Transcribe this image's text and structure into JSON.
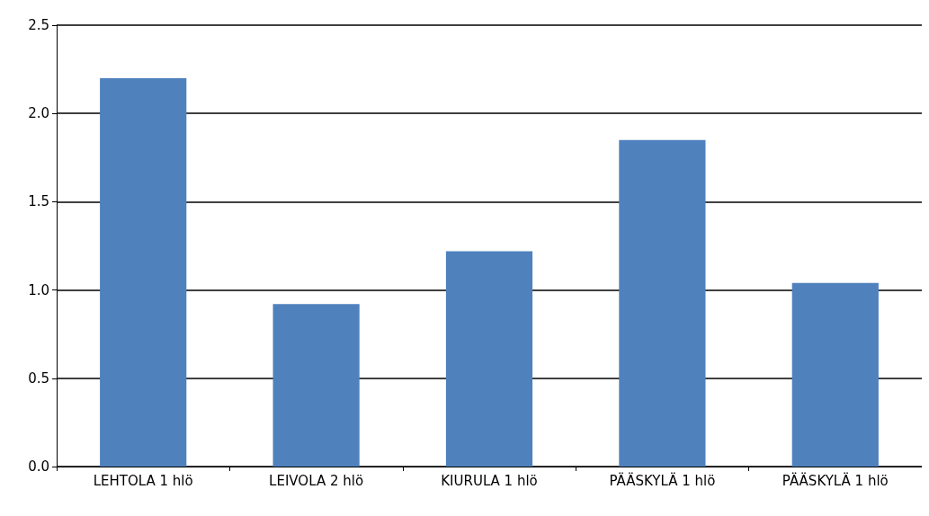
{
  "chart_data": {
    "type": "bar",
    "categories": [
      "LEHTOLA 1 hlö",
      "LEIVOLA 2 hlö",
      "KIURULA 1 hlö",
      "PÄÄSKYLÄ 1 hlö",
      "PÄÄSKYLÄ 1 hlö"
    ],
    "values": [
      2.2,
      0.92,
      1.22,
      1.85,
      1.04
    ],
    "color": "#4f81bd",
    "ylim": [
      0,
      2.5
    ],
    "yticks": [
      {
        "value": 0,
        "label": "0.0"
      },
      0.5,
      {
        "value": 1,
        "label": "1.0"
      },
      1.5,
      {
        "value": 2,
        "label": "2.0"
      },
      2.5
    ],
    "grid": "y"
  }
}
